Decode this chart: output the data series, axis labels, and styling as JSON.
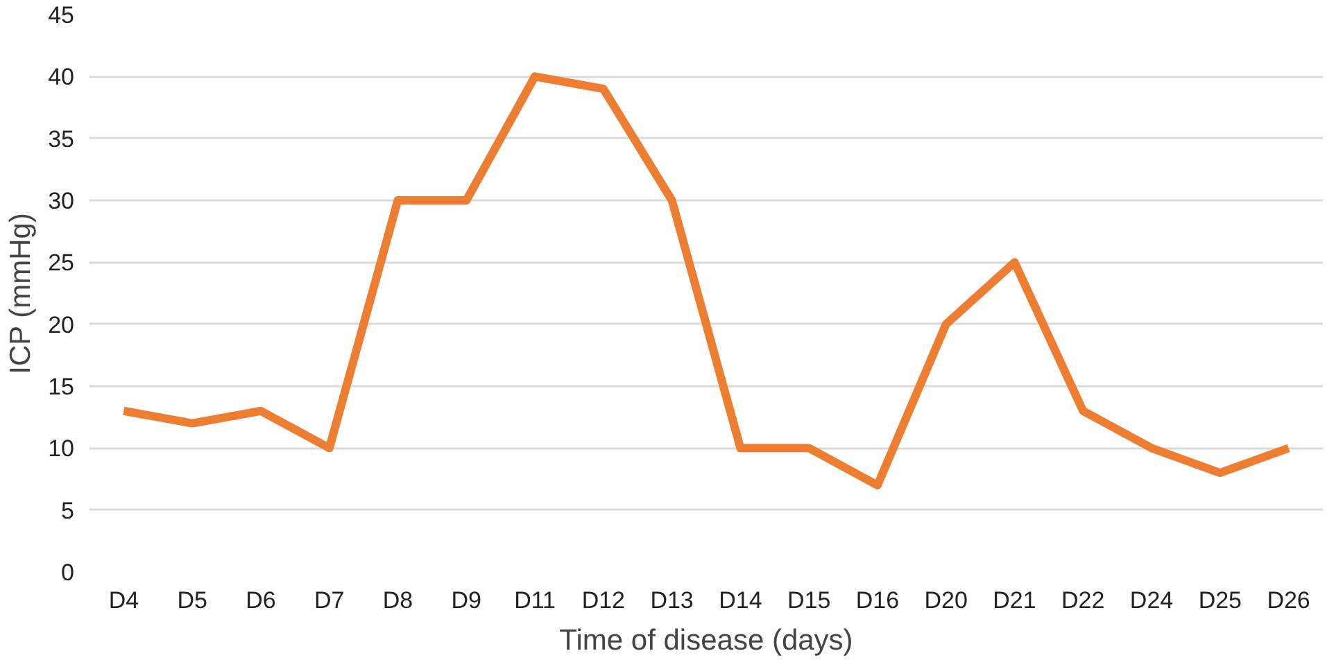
{
  "chart_data": {
    "type": "line",
    "xlabel": "Time of disease (days)",
    "ylabel": "ICP (mmHg)",
    "categories": [
      "D4",
      "D5",
      "D6",
      "D7",
      "D8",
      "D9",
      "D11",
      "D12",
      "D13",
      "D14",
      "D15",
      "D16",
      "D20",
      "D21",
      "D22",
      "D24",
      "D25",
      "D26"
    ],
    "series": [
      {
        "color": "#ed7d31",
        "values": [
          13,
          12,
          13,
          10,
          30,
          30,
          40,
          39,
          30,
          10,
          10,
          7,
          20,
          25,
          13,
          10,
          8,
          10
        ]
      }
    ],
    "ylim": [
      0,
      45
    ],
    "yticks": [
      0,
      5,
      10,
      15,
      20,
      25,
      30,
      35,
      40,
      45
    ],
    "grid": "y",
    "marker": "none",
    "line_style": "solid"
  }
}
